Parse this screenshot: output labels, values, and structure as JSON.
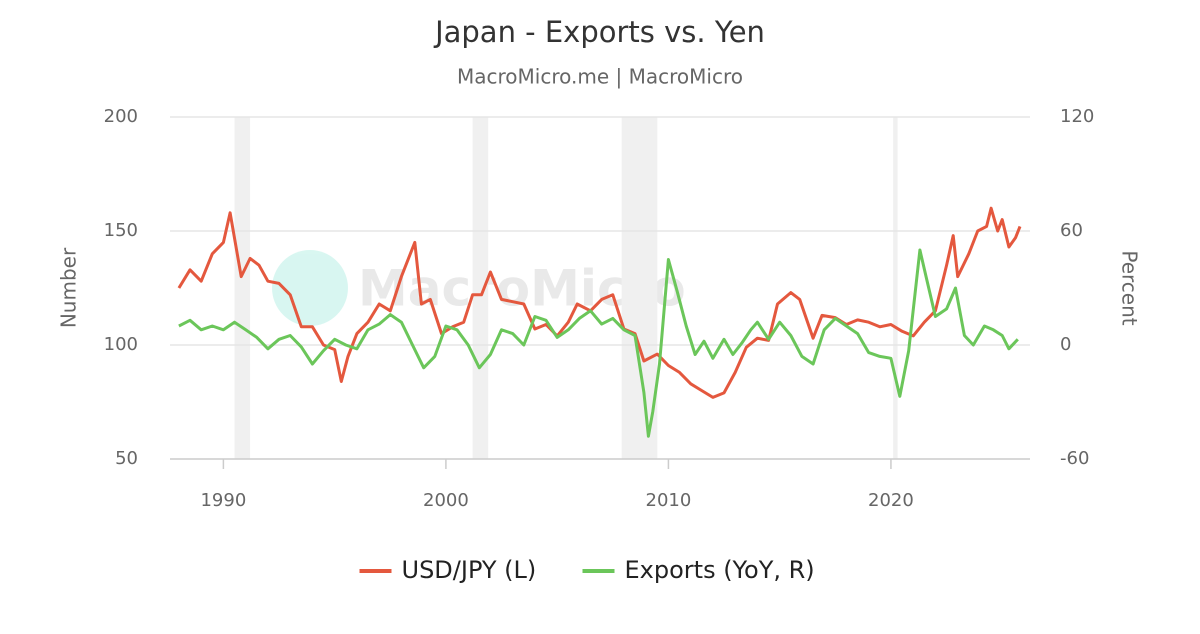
{
  "chart_data": {
    "type": "line",
    "title": "Japan - Exports vs. Yen",
    "subtitle": "MacroMicro.me | MacroMicro",
    "watermark": "MacroMicro",
    "ylabel": "Number",
    "y2label": "Percent",
    "xlim": [
      1987.6,
      2026.25
    ],
    "xticks": [
      1990,
      2000,
      2010,
      2020
    ],
    "ylim": [
      50,
      200
    ],
    "yticks": [
      50,
      100,
      150,
      200
    ],
    "y2lim": [
      -60,
      120
    ],
    "y2ticks": [
      -60,
      0,
      60,
      120
    ],
    "grid": true,
    "legend": "bottom",
    "recessions": [
      [
        1990.5,
        1991.2
      ],
      [
        2001.2,
        2001.9
      ],
      [
        2007.9,
        2009.5
      ],
      [
        2020.1,
        2020.3
      ]
    ],
    "series": [
      {
        "name": "USD/JPY (L)",
        "color": "#e4583e",
        "axis": "y",
        "x": [
          1988.0,
          1988.5,
          1989.0,
          1989.5,
          1990.0,
          1990.3,
          1990.8,
          1991.2,
          1991.6,
          1992.0,
          1992.5,
          1993.0,
          1993.5,
          1994.0,
          1994.5,
          1995.0,
          1995.3,
          1995.6,
          1996.0,
          1996.5,
          1997.0,
          1997.5,
          1998.0,
          1998.6,
          1998.9,
          1999.3,
          1999.8,
          2000.3,
          2000.8,
          2001.2,
          2001.6,
          2002.0,
          2002.5,
          2003.0,
          2003.5,
          2004.0,
          2004.5,
          2005.0,
          2005.5,
          2005.9,
          2006.5,
          2007.0,
          2007.5,
          2008.0,
          2008.5,
          2008.9,
          2009.5,
          2010.0,
          2010.5,
          2011.0,
          2011.5,
          2012.0,
          2012.5,
          2013.0,
          2013.5,
          2014.0,
          2014.5,
          2014.9,
          2015.5,
          2015.9,
          2016.5,
          2016.9,
          2017.5,
          2018.0,
          2018.5,
          2019.0,
          2019.5,
          2020.0,
          2020.5,
          2021.0,
          2021.5,
          2022.0,
          2022.5,
          2022.8,
          2023.0,
          2023.5,
          2023.9,
          2024.3,
          2024.5,
          2024.8,
          2025.0,
          2025.3,
          2025.6,
          2025.8
        ],
        "values": [
          125,
          133,
          128,
          140,
          145,
          158,
          130,
          138,
          135,
          128,
          127,
          122,
          108,
          108,
          100,
          98,
          84,
          95,
          105,
          110,
          118,
          115,
          130,
          145,
          118,
          120,
          105,
          108,
          110,
          122,
          122,
          132,
          120,
          119,
          118,
          107,
          109,
          104,
          110,
          118,
          115,
          120,
          122,
          107,
          105,
          93,
          96,
          91,
          88,
          83,
          80,
          77,
          79,
          88,
          99,
          103,
          102,
          118,
          123,
          120,
          103,
          113,
          112,
          109,
          111,
          110,
          108,
          109,
          106,
          104,
          110,
          115,
          135,
          148,
          130,
          140,
          150,
          152,
          160,
          150,
          155,
          143,
          147,
          152
        ]
      },
      {
        "name": "Exports (YoY, R)",
        "color": "#6bc65a",
        "axis": "y2",
        "x": [
          1988.0,
          1988.5,
          1989.0,
          1989.5,
          1990.0,
          1990.5,
          1991.0,
          1991.5,
          1992.0,
          1992.5,
          1993.0,
          1993.5,
          1994.0,
          1994.5,
          1995.0,
          1995.5,
          1996.0,
          1996.5,
          1997.0,
          1997.5,
          1998.0,
          1998.5,
          1999.0,
          1999.5,
          2000.0,
          2000.5,
          2001.0,
          2001.5,
          2002.0,
          2002.5,
          2003.0,
          2003.5,
          2004.0,
          2004.5,
          2005.0,
          2005.5,
          2006.0,
          2006.5,
          2007.0,
          2007.5,
          2008.0,
          2008.5,
          2008.9,
          2009.1,
          2009.3,
          2009.6,
          2010.0,
          2010.4,
          2010.8,
          2011.2,
          2011.6,
          2012.0,
          2012.5,
          2012.9,
          2013.3,
          2013.7,
          2014.0,
          2014.5,
          2015.0,
          2015.5,
          2016.0,
          2016.5,
          2017.0,
          2017.5,
          2018.0,
          2018.5,
          2019.0,
          2019.5,
          2020.0,
          2020.4,
          2020.8,
          2021.3,
          2021.6,
          2022.0,
          2022.5,
          2022.9,
          2023.3,
          2023.7,
          2024.2,
          2024.6,
          2025.0,
          2025.3,
          2025.7
        ],
        "values": [
          10,
          13,
          8,
          10,
          8,
          12,
          8,
          4,
          -2,
          3,
          5,
          -1,
          -10,
          -3,
          3,
          0,
          -2,
          8,
          11,
          16,
          12,
          0,
          -12,
          -6,
          10,
          8,
          0,
          -12,
          -5,
          8,
          6,
          0,
          15,
          13,
          4,
          8,
          14,
          18,
          11,
          14,
          8,
          5,
          -25,
          -48,
          -35,
          -10,
          45,
          28,
          10,
          -5,
          2,
          -7,
          3,
          -5,
          1,
          8,
          12,
          3,
          12,
          5,
          -6,
          -10,
          8,
          14,
          10,
          6,
          -4,
          -6,
          -7,
          -27,
          -3,
          50,
          35,
          15,
          19,
          30,
          5,
          0,
          10,
          8,
          5,
          -2,
          3
        ]
      }
    ]
  }
}
